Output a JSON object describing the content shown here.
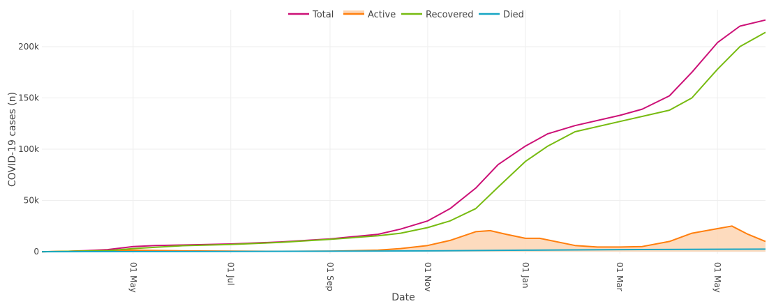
{
  "chart_data": {
    "type": "line",
    "xlabel": "Date",
    "ylabel": "COVID-19 cases (n)",
    "x_ticks": [
      {
        "date": "2020-05-01",
        "label": "01 May"
      },
      {
        "date": "2020-07-01",
        "label": "01 Jul"
      },
      {
        "date": "2020-09-01",
        "label": "01 Sep"
      },
      {
        "date": "2020-11-01",
        "label": "01 Nov"
      },
      {
        "date": "2021-01-01",
        "label": "01 Jan"
      },
      {
        "date": "2021-03-01",
        "label": "01 Mar"
      },
      {
        "date": "2021-05-01",
        "label": "01 May"
      }
    ],
    "y_ticks": [
      {
        "value": 0,
        "label": "0"
      },
      {
        "value": 50000,
        "label": "50k"
      },
      {
        "value": 100000,
        "label": "100k"
      },
      {
        "value": 150000,
        "label": "150k"
      },
      {
        "value": 200000,
        "label": "200k"
      }
    ],
    "xlim": [
      "2020-03-05",
      "2021-05-31"
    ],
    "ylim": [
      -2000,
      236000
    ],
    "grid": true,
    "legend_position": "top-center",
    "legend": [
      {
        "name": "Total",
        "color": "#cc1177"
      },
      {
        "name": "Active",
        "color": "#ff7f0e"
      },
      {
        "name": "Recovered",
        "color": "#77bb11"
      },
      {
        "name": "Died",
        "color": "#17a6c4"
      }
    ],
    "series": [
      {
        "name": "Total",
        "color": "#cc1177",
        "fill": false,
        "points": [
          [
            "2020-03-05",
            0
          ],
          [
            "2020-03-20",
            300
          ],
          [
            "2020-04-01",
            1000
          ],
          [
            "2020-04-15",
            2000
          ],
          [
            "2020-05-01",
            5000
          ],
          [
            "2020-05-15",
            6000
          ],
          [
            "2020-06-01",
            6500
          ],
          [
            "2020-07-01",
            7500
          ],
          [
            "2020-08-01",
            9500
          ],
          [
            "2020-09-01",
            12500
          ],
          [
            "2020-10-01",
            17000
          ],
          [
            "2020-10-15",
            22000
          ],
          [
            "2020-11-01",
            30000
          ],
          [
            "2020-11-15",
            42000
          ],
          [
            "2020-12-01",
            62000
          ],
          [
            "2020-12-15",
            85000
          ],
          [
            "2021-01-01",
            103000
          ],
          [
            "2021-01-15",
            115000
          ],
          [
            "2021-02-01",
            123000
          ],
          [
            "2021-03-01",
            133000
          ],
          [
            "2021-03-15",
            139000
          ],
          [
            "2021-04-01",
            152000
          ],
          [
            "2021-04-15",
            175000
          ],
          [
            "2021-05-01",
            204000
          ],
          [
            "2021-05-15",
            220000
          ],
          [
            "2021-05-31",
            226000
          ]
        ]
      },
      {
        "name": "Active",
        "color": "#ff7f0e",
        "fill": true,
        "fill_color": "#fdd5b3",
        "points": [
          [
            "2020-03-05",
            0
          ],
          [
            "2020-04-15",
            1000
          ],
          [
            "2020-05-01",
            1500
          ],
          [
            "2020-06-01",
            800
          ],
          [
            "2020-07-01",
            500
          ],
          [
            "2020-08-01",
            400
          ],
          [
            "2020-09-01",
            500
          ],
          [
            "2020-10-01",
            1500
          ],
          [
            "2020-10-15",
            3000
          ],
          [
            "2020-11-01",
            6000
          ],
          [
            "2020-11-15",
            11000
          ],
          [
            "2020-12-01",
            19500
          ],
          [
            "2020-12-10",
            20500
          ],
          [
            "2020-12-20",
            17000
          ],
          [
            "2021-01-01",
            13000
          ],
          [
            "2021-01-10",
            13000
          ],
          [
            "2021-02-01",
            6000
          ],
          [
            "2021-02-15",
            4500
          ],
          [
            "2021-03-01",
            4500
          ],
          [
            "2021-03-15",
            5000
          ],
          [
            "2021-04-01",
            10000
          ],
          [
            "2021-04-15",
            18000
          ],
          [
            "2021-05-01",
            22500
          ],
          [
            "2021-05-10",
            25000
          ],
          [
            "2021-05-20",
            17000
          ],
          [
            "2021-05-31",
            10000
          ]
        ]
      },
      {
        "name": "Recovered",
        "color": "#77bb11",
        "fill": false,
        "points": [
          [
            "2020-03-05",
            0
          ],
          [
            "2020-04-15",
            1000
          ],
          [
            "2020-05-01",
            3000
          ],
          [
            "2020-06-01",
            5800
          ],
          [
            "2020-07-01",
            7000
          ],
          [
            "2020-08-01",
            9000
          ],
          [
            "2020-09-01",
            12000
          ],
          [
            "2020-10-01",
            15500
          ],
          [
            "2020-10-15",
            18000
          ],
          [
            "2020-11-01",
            23500
          ],
          [
            "2020-11-15",
            30000
          ],
          [
            "2020-12-01",
            42000
          ],
          [
            "2020-12-15",
            63000
          ],
          [
            "2021-01-01",
            88000
          ],
          [
            "2021-01-15",
            103000
          ],
          [
            "2021-02-01",
            117000
          ],
          [
            "2021-03-01",
            127000
          ],
          [
            "2021-04-01",
            138000
          ],
          [
            "2021-04-15",
            150000
          ],
          [
            "2021-05-01",
            178000
          ],
          [
            "2021-05-15",
            200000
          ],
          [
            "2021-05-31",
            214000
          ]
        ]
      },
      {
        "name": "Died",
        "color": "#17a6c4",
        "fill": false,
        "points": [
          [
            "2020-03-05",
            0
          ],
          [
            "2020-07-01",
            200
          ],
          [
            "2020-11-01",
            800
          ],
          [
            "2021-01-01",
            1500
          ],
          [
            "2021-03-01",
            2000
          ],
          [
            "2021-05-31",
            2500
          ]
        ]
      }
    ]
  }
}
